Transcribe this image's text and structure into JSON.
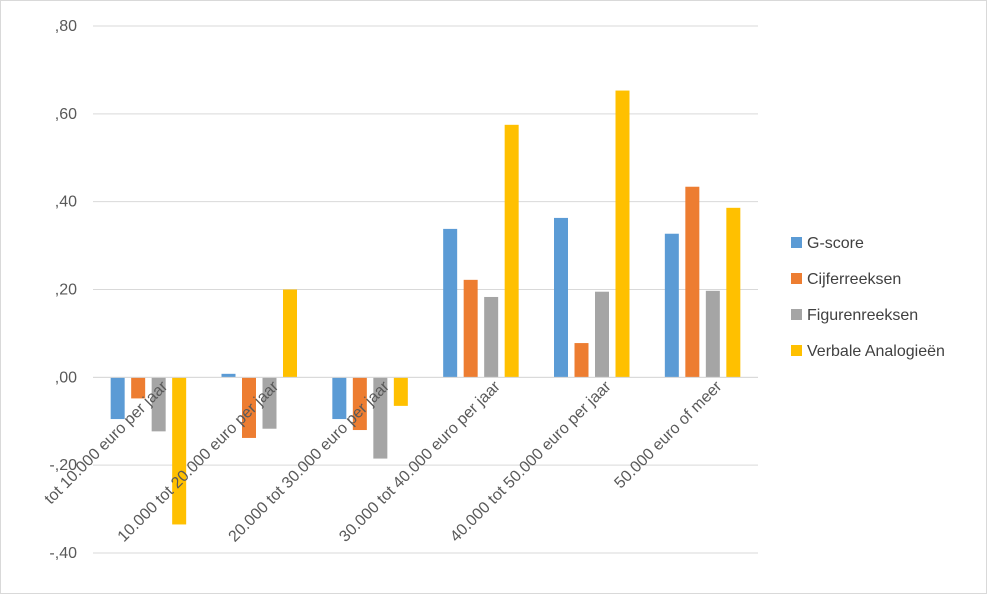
{
  "chart_data": {
    "type": "bar",
    "title": "",
    "xlabel": "",
    "ylabel": "",
    "ylim": [
      -0.4,
      0.8
    ],
    "ytick_values": [
      -0.4,
      -0.2,
      0.0,
      0.2,
      0.4,
      0.6,
      0.8
    ],
    "ytick_labels": [
      "-,40",
      "-,20",
      ",00",
      ",20",
      ",40",
      ",60",
      ",80"
    ],
    "grid": true,
    "legend_position": "right",
    "categories": [
      "tot 10.000 euro per jaar",
      "10.000 tot 20.000 euro per jaar",
      "20.000 tot 30.000 euro per jaar",
      "30.000 tot 40.000 euro per jaar",
      "40.000 tot 50.000 euro per jaar",
      "50.000 euro of meer"
    ],
    "series": [
      {
        "name": "G-score",
        "color": "#5b9bd5",
        "values": [
          -0.095,
          0.008,
          -0.095,
          0.338,
          0.363,
          0.327
        ]
      },
      {
        "name": "Cijferreeksen",
        "color": "#ed7d31",
        "values": [
          -0.048,
          -0.138,
          -0.12,
          0.222,
          0.078,
          0.434
        ]
      },
      {
        "name": "Figurenreeksen",
        "color": "#a5a5a5",
        "values": [
          -0.123,
          -0.117,
          -0.185,
          0.183,
          0.195,
          0.197
        ]
      },
      {
        "name": "Verbale Analogieën",
        "color": "#ffc000",
        "values": [
          -0.335,
          0.2,
          -0.065,
          0.575,
          0.653,
          0.386
        ]
      }
    ]
  }
}
